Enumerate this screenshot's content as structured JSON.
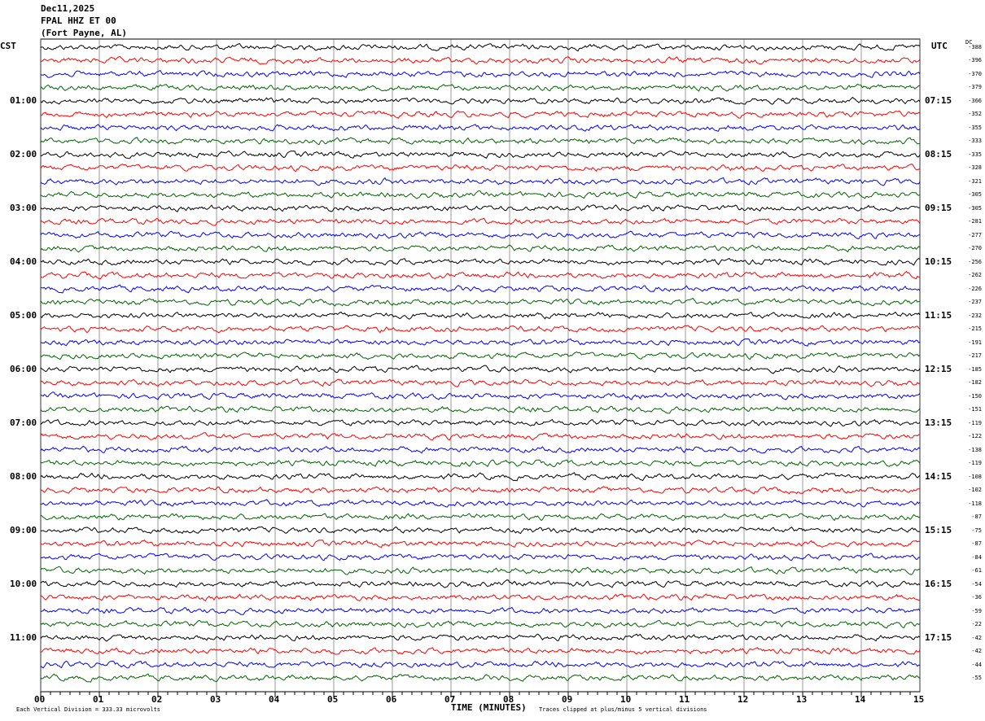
{
  "header": {
    "date": "Dec11,2025",
    "station": "FPAL HHZ ET 00",
    "location": "(Fort Payne, AL)"
  },
  "chart_data": {
    "type": "line",
    "subtype": "helicorder",
    "left_axis_title": "CST",
    "right_axis_title": "UTC",
    "dc_title": "DC",
    "xlabel": "TIME (MINUTES)",
    "xlim": [
      0,
      15
    ],
    "x_ticks": [
      "00",
      "01",
      "02",
      "03",
      "04",
      "05",
      "06",
      "07",
      "08",
      "09",
      "10",
      "11",
      "12",
      "13",
      "14",
      "15"
    ],
    "left_hour_labels": [
      "",
      "01:00",
      "02:00",
      "03:00",
      "04:00",
      "05:00",
      "06:00",
      "07:00",
      "08:00",
      "09:00",
      "10:00",
      "11:00"
    ],
    "right_hour_labels": [
      "",
      "07:15",
      "08:15",
      "09:15",
      "10:15",
      "11:15",
      "12:15",
      "13:15",
      "14:15",
      "15:15",
      "16:15",
      "17:15"
    ],
    "trace_colors": [
      "#000000",
      "#ff0000",
      "#0000ff",
      "#006400"
    ],
    "trace_count": 48,
    "dc_offsets": [
      -388,
      -396,
      -370,
      -379,
      -366,
      -352,
      -355,
      -333,
      -335,
      -328,
      -321,
      -305,
      -305,
      -281,
      -277,
      -270,
      -256,
      -262,
      -226,
      -237,
      -232,
      -215,
      -191,
      -217,
      -185,
      -182,
      -150,
      -151,
      -119,
      -122,
      -138,
      -119,
      -108,
      -102,
      -118,
      -87,
      -75,
      -87,
      -84,
      -61,
      -54,
      -36,
      -59,
      -22,
      -42,
      -42,
      -44,
      -55
    ],
    "grid": true
  },
  "footer": {
    "scale_note": "Each Vertical Division =  333.33 microvolts",
    "clip_note": "Traces clipped at plus/minus 5 vertical divisions"
  }
}
